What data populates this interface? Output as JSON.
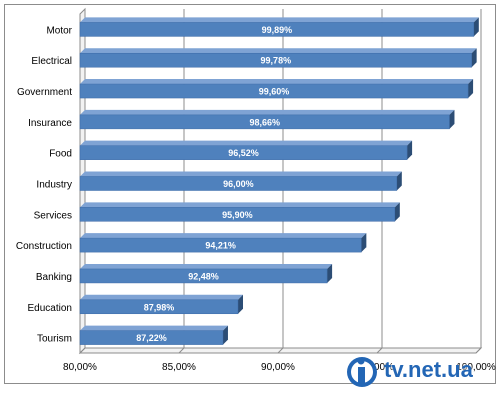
{
  "chart_data": {
    "type": "bar",
    "orientation": "horizontal",
    "categories": [
      "Motor",
      "Electrical",
      "Government",
      "Insurance",
      "Food",
      "Industry",
      "Services",
      "Construction",
      "Banking",
      "Education",
      "Tourism"
    ],
    "values": [
      99.89,
      99.78,
      99.6,
      98.66,
      96.52,
      96.0,
      95.9,
      94.21,
      92.48,
      87.98,
      87.22
    ],
    "data_labels": [
      "99,89%",
      "99,78%",
      "99,60%",
      "98,66%",
      "96,52%",
      "96,00%",
      "95,90%",
      "94,21%",
      "92,48%",
      "87,98%",
      "87,22%"
    ],
    "xlim": [
      80,
      100
    ],
    "x_ticks": [
      80,
      85,
      90,
      95,
      100
    ],
    "x_tick_labels": [
      "80,00%",
      "85,00%",
      "90,00%",
      "95,00%",
      "100,00%"
    ],
    "grid": "vertical",
    "legend": "none",
    "bar_color": "#4f81bd",
    "bar_side_color": "#2c4d75",
    "bar_top_color": "#7fa3d4"
  },
  "watermark": {
    "text": "tv.net.ua",
    "color": "#2366b5"
  }
}
